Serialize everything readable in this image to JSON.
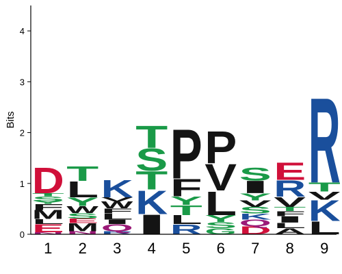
{
  "chart_data": {
    "type": "sequence_logo",
    "ylabel": "Bits",
    "ylim": [
      0,
      4.5
    ],
    "yticks": [
      0,
      1,
      2,
      3,
      4
    ],
    "ytick_labels": [
      "0",
      "1",
      "2",
      "3",
      "4"
    ],
    "positions": [
      "1",
      "2",
      "3",
      "4",
      "5",
      "6",
      "7",
      "8",
      "9"
    ],
    "colors": {
      "acidic": "#d0103a",
      "basic": "#1a4f9c",
      "polar": "#1a9a48",
      "neutral": "#9b1a78",
      "hydrophobic": "#141414"
    },
    "color_classes": {
      "D": "acidic",
      "E": "acidic",
      "K": "basic",
      "R": "basic",
      "H": "basic",
      "S": "polar",
      "G": "polar",
      "Y": "polar",
      "T": "polar",
      "C": "polar",
      "Q": "neutral",
      "N": "neutral",
      "A": "hydrophobic",
      "V": "hydrophobic",
      "L": "hydrophobic",
      "I": "hydrophobic",
      "P": "hydrophobic",
      "W": "hydrophobic",
      "F": "hydrophobic",
      "M": "hydrophobic"
    },
    "stacks": [
      {
        "position": "1",
        "letters": [
          {
            "letter": "N",
            "height": 0.04
          },
          {
            "letter": "E",
            "height": 0.16
          },
          {
            "letter": "L",
            "height": 0.1
          },
          {
            "letter": "M",
            "height": 0.18
          },
          {
            "letter": "F",
            "height": 0.12
          },
          {
            "letter": "Y",
            "height": 0.05
          },
          {
            "letter": "S",
            "height": 0.1
          },
          {
            "letter": "T",
            "height": 0.06
          },
          {
            "letter": "D",
            "height": 0.52
          }
        ]
      },
      {
        "position": "2",
        "letters": [
          {
            "letter": "N",
            "height": 0.06
          },
          {
            "letter": "M",
            "height": 0.16
          },
          {
            "letter": "E",
            "height": 0.09
          },
          {
            "letter": "S",
            "height": 0.11
          },
          {
            "letter": "W",
            "height": 0.14
          },
          {
            "letter": "Y",
            "height": 0.17
          },
          {
            "letter": "L",
            "height": 0.32
          },
          {
            "letter": "T",
            "height": 0.3
          }
        ]
      },
      {
        "position": "3",
        "letters": [
          {
            "letter": "R",
            "height": 0.06
          },
          {
            "letter": "Q",
            "height": 0.14
          },
          {
            "letter": "I",
            "height": 0.09
          },
          {
            "letter": "L",
            "height": 0.12
          },
          {
            "letter": "F",
            "height": 0.1
          },
          {
            "letter": "W",
            "height": 0.14
          },
          {
            "letter": "V",
            "height": 0.08
          },
          {
            "letter": "K",
            "height": 0.35
          }
        ]
      },
      {
        "position": "4",
        "letters": [
          {
            "letter": "I",
            "height": 0.4
          },
          {
            "letter": "K",
            "height": 0.48
          },
          {
            "letter": "T",
            "height": 0.37
          },
          {
            "letter": "S",
            "height": 0.45
          },
          {
            "letter": "T",
            "height": 0.45
          }
        ]
      },
      {
        "position": "5",
        "letters": [
          {
            "letter": "R",
            "height": 0.2
          },
          {
            "letter": "L",
            "height": 0.18
          },
          {
            "letter": "T",
            "height": 0.2
          },
          {
            "letter": "Y",
            "height": 0.17
          },
          {
            "letter": "F",
            "height": 0.35
          },
          {
            "letter": "P",
            "height": 1.0
          }
        ]
      },
      {
        "position": "6",
        "letters": [
          {
            "letter": "G",
            "height": 0.12
          },
          {
            "letter": "S",
            "height": 0.12
          },
          {
            "letter": "Y",
            "height": 0.14
          },
          {
            "letter": "L",
            "height": 0.48
          },
          {
            "letter": "V",
            "height": 0.54
          },
          {
            "letter": "P",
            "height": 0.65
          }
        ]
      },
      {
        "position": "7",
        "letters": [
          {
            "letter": "D",
            "height": 0.16
          },
          {
            "letter": "Q",
            "height": 0.13
          },
          {
            "letter": "K",
            "height": 0.12
          },
          {
            "letter": "S",
            "height": 0.13
          },
          {
            "letter": "V",
            "height": 0.13
          },
          {
            "letter": "Y",
            "height": 0.14
          },
          {
            "letter": "I",
            "height": 0.25
          },
          {
            "letter": "S",
            "height": 0.26
          }
        ]
      },
      {
        "position": "8",
        "letters": [
          {
            "letter": "A",
            "height": 0.12
          },
          {
            "letter": "L",
            "height": 0.11
          },
          {
            "letter": "I",
            "height": 0.13
          },
          {
            "letter": "F",
            "height": 0.1
          },
          {
            "letter": "T",
            "height": 0.08
          },
          {
            "letter": "V",
            "height": 0.2
          },
          {
            "letter": "R",
            "height": 0.33
          },
          {
            "letter": "E",
            "height": 0.35
          }
        ]
      },
      {
        "position": "9",
        "letters": [
          {
            "letter": "L",
            "height": 0.26
          },
          {
            "letter": "K",
            "height": 0.42
          },
          {
            "letter": "V",
            "height": 0.16
          },
          {
            "letter": "T",
            "height": 0.18
          },
          {
            "letter": "R",
            "height": 1.72
          }
        ]
      }
    ]
  }
}
